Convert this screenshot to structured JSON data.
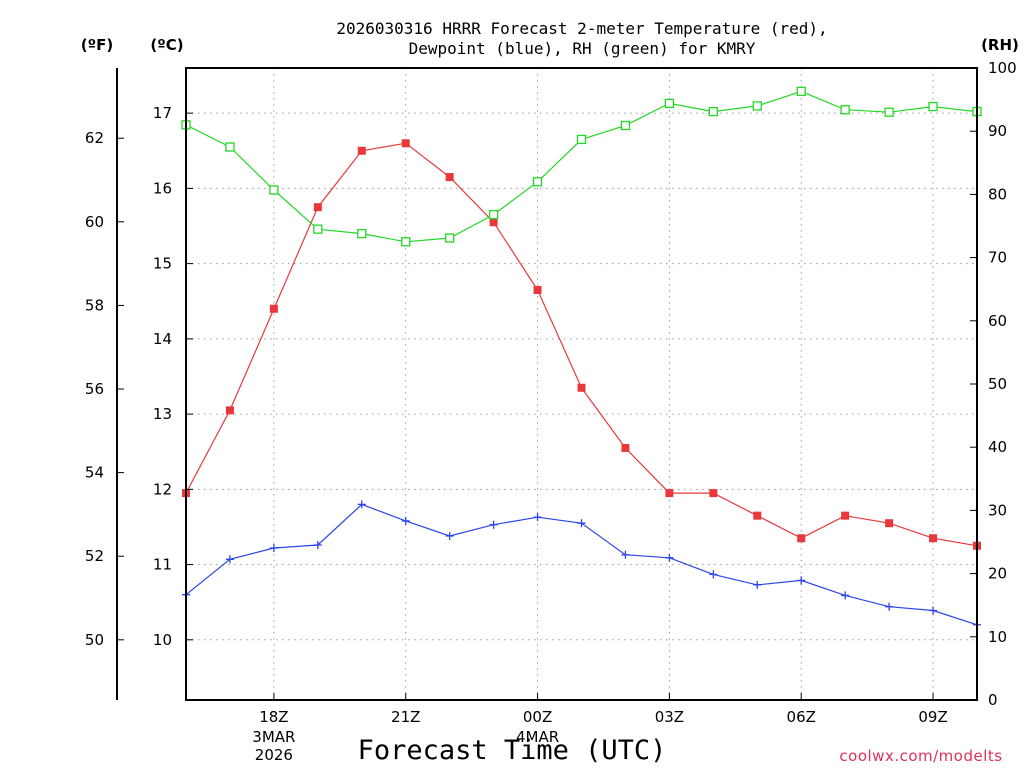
{
  "chart_data": {
    "type": "line",
    "title_lines": [
      "2026030316 HRRR Forecast 2-meter Temperature (red),",
      "Dewpoint (blue), RH (green) for KMRY"
    ],
    "xlabel": "Forecast Time (UTC)",
    "credit": "coolwx.com/modelts",
    "unit_labels": {
      "fahrenheit": "(ºF)",
      "celsius": "(ºC)",
      "rh": "(RH)"
    },
    "hours": [
      16,
      17,
      18,
      19,
      20,
      21,
      22,
      23,
      24,
      25,
      26,
      27,
      28,
      29,
      30,
      31,
      32,
      33,
      34
    ],
    "xlim": [
      16,
      34
    ],
    "x_ticks": [
      {
        "hour": 18,
        "label": "18Z",
        "sub": [
          "3MAR",
          "2026"
        ]
      },
      {
        "hour": 21,
        "label": "21Z",
        "sub": []
      },
      {
        "hour": 24,
        "label": "00Z",
        "sub": [
          "4MAR"
        ]
      },
      {
        "hour": 27,
        "label": "03Z",
        "sub": []
      },
      {
        "hour": 30,
        "label": "06Z",
        "sub": []
      },
      {
        "hour": 33,
        "label": "09Z",
        "sub": []
      }
    ],
    "celsius_axis": {
      "range": [
        9.2,
        17.6
      ],
      "ticks": [
        "10",
        "11",
        "12",
        "13",
        "14",
        "15",
        "16",
        "17"
      ]
    },
    "fahrenheit_axis": {
      "ticks": [
        "50",
        "52",
        "54",
        "56",
        "58",
        "60",
        "62"
      ]
    },
    "rh_axis": {
      "range": [
        0,
        100
      ],
      "ticks": [
        "0",
        "10",
        "20",
        "30",
        "40",
        "50",
        "60",
        "70",
        "80",
        "90",
        "100"
      ]
    },
    "series": [
      {
        "name": "Temperature",
        "color": "#e8383c",
        "marker": "filled-square",
        "axis": "celsius",
        "values": [
          11.95,
          13.05,
          14.4,
          15.75,
          16.5,
          16.6,
          16.15,
          15.55,
          14.65,
          13.35,
          12.55,
          11.95,
          11.95,
          11.65,
          11.35,
          11.65,
          11.55,
          11.35,
          11.25
        ]
      },
      {
        "name": "Dewpoint",
        "color": "#2b45e8",
        "marker": "plus",
        "axis": "celsius",
        "values": [
          10.6,
          11.07,
          11.22,
          11.26,
          11.8,
          11.58,
          11.38,
          11.53,
          11.63,
          11.55,
          11.13,
          11.09,
          10.87,
          10.73,
          10.79,
          10.59,
          10.44,
          10.39,
          10.2
        ]
      },
      {
        "name": "RH",
        "color": "#22d826",
        "marker": "open-square",
        "axis": "rh",
        "values": [
          91,
          87.5,
          80.7,
          74.5,
          73.8,
          72.5,
          73.1,
          76.8,
          82,
          88.7,
          90.9,
          94.4,
          93.1,
          94,
          96.3,
          93.4,
          93,
          93.9,
          93.1
        ]
      }
    ]
  }
}
